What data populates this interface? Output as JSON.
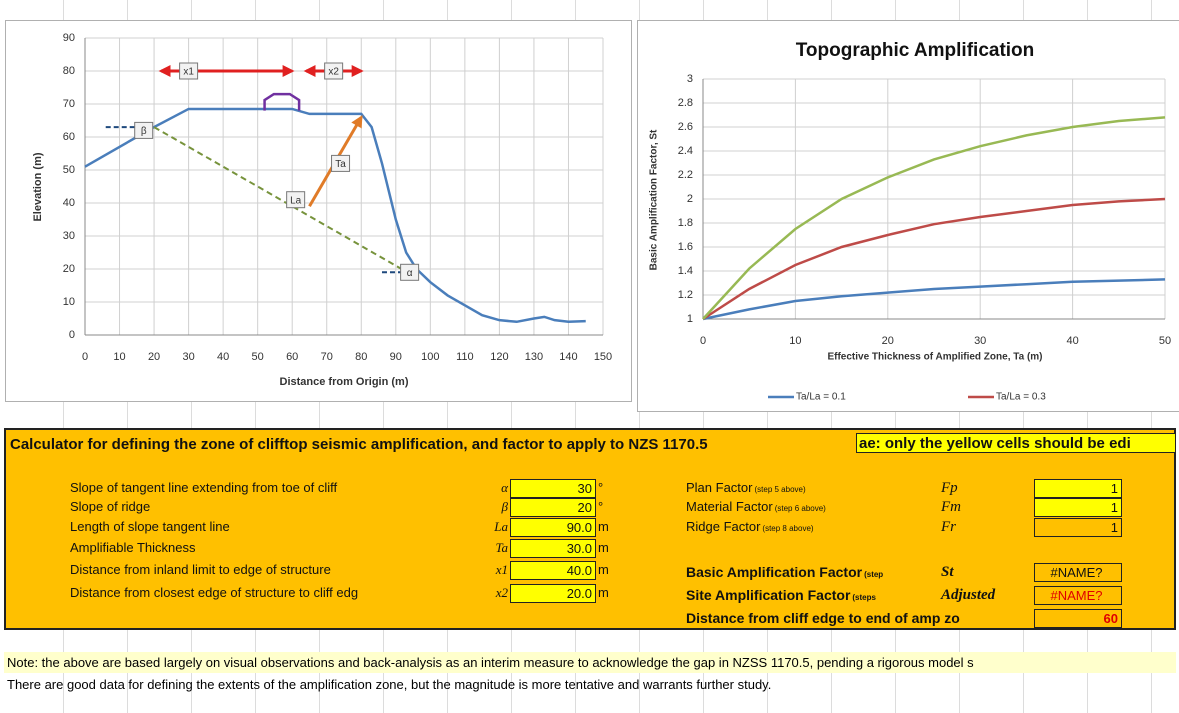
{
  "profile_chart": {
    "type": "line",
    "x_label": "Distance from Origin (m)",
    "y_label": "Elevation (m)",
    "x": [
      0,
      15,
      20,
      30,
      60,
      65,
      80,
      83,
      86,
      90,
      93,
      96,
      100,
      105,
      110,
      115,
      120,
      125,
      130,
      133,
      136,
      140,
      145
    ],
    "values": [
      51,
      60,
      63,
      68.5,
      68.5,
      67,
      67,
      63,
      52,
      35,
      25,
      20,
      16,
      12,
      9,
      6,
      4.5,
      4,
      5,
      5.5,
      4.5,
      4,
      4.2
    ],
    "color": "#4a7ebb",
    "xlim": [
      0,
      150
    ],
    "ylim": [
      0,
      90
    ],
    "xticks": [
      0,
      10,
      20,
      30,
      40,
      50,
      60,
      70,
      80,
      90,
      100,
      110,
      120,
      130,
      140,
      150
    ],
    "yticks": [
      0,
      10,
      20,
      30,
      40,
      50,
      60,
      70,
      80,
      90
    ],
    "grid": true,
    "annotations": [
      "x1",
      "x2",
      "Ta",
      "La",
      "β",
      "α"
    ]
  },
  "amp_chart": {
    "type": "line",
    "title": "Topographic Amplification",
    "x_label": "Effective Thickness of Amplified Zone, Ta (m)",
    "y_label": "Basic Amplification Factor, St",
    "x": [
      0,
      5,
      10,
      15,
      20,
      25,
      30,
      35,
      40,
      45,
      50
    ],
    "series": [
      {
        "name": "Ta/La = 0.1",
        "color": "#4a7ebb",
        "values": [
          1,
          1.08,
          1.15,
          1.19,
          1.22,
          1.25,
          1.27,
          1.29,
          1.31,
          1.32,
          1.33
        ]
      },
      {
        "name": "Ta/La = 0.3",
        "color": "#be4b48",
        "values": [
          1,
          1.25,
          1.45,
          1.6,
          1.7,
          1.79,
          1.85,
          1.9,
          1.95,
          1.98,
          2.0
        ]
      },
      {
        "color": "#98b954",
        "values": [
          1,
          1.42,
          1.75,
          2.0,
          2.18,
          2.33,
          2.44,
          2.53,
          2.6,
          2.65,
          2.68
        ]
      }
    ],
    "xlim": [
      0,
      50
    ],
    "ylim": [
      1,
      3
    ],
    "xticks": [
      0,
      10,
      20,
      30,
      40,
      50
    ],
    "yticks": [
      1,
      1.2,
      1.4,
      1.6,
      1.8,
      2,
      2.2,
      2.4,
      2.6,
      2.8,
      3
    ],
    "grid": true,
    "legend": "bottom"
  },
  "calculator": {
    "title": "Calculator for defining the zone of clifftop seismic amplification, and factor to apply to NZS 1170.5",
    "instruction": "ae: only the yellow cells should be edi",
    "left_rows": [
      {
        "label": "Slope of tangent line extending from toe of cliff",
        "symbol": "α",
        "value": "30",
        "unit": "°"
      },
      {
        "label": "Slope of ridge",
        "symbol": "β",
        "value": "20",
        "unit": "°"
      },
      {
        "label": "Length of slope tangent line",
        "symbol": "La",
        "value": "90.0",
        "unit": "m"
      },
      {
        "label": "Amplifiable Thickness",
        "symbol": "Ta",
        "value": "30.0",
        "unit": "m"
      },
      {
        "label": "Distance from inland limit to edge of structure",
        "symbol": "x1",
        "value": "40.0",
        "unit": "m"
      },
      {
        "label": "Distance from closest edge of structure to cliff edg",
        "symbol": "x2",
        "value": "20.0",
        "unit": "m"
      }
    ],
    "right_rows": [
      {
        "label": "Plan Factor",
        "note": "(step 5 above)",
        "symbol": "Fp",
        "value": "1"
      },
      {
        "label": "Material Factor",
        "note": "(step 6 above)",
        "symbol": "Fm",
        "value": "1"
      },
      {
        "label": "Ridge Factor",
        "note": "(step 8 above)",
        "symbol": "Fr",
        "value": "1"
      },
      {
        "label": "Basic Amplification Factor",
        "note": "(step",
        "symbol": "St",
        "value": "#NAME?"
      },
      {
        "label": "Site Amplification Factor",
        "note": "(steps",
        "symbol": "Adjusted",
        "value": "#NAME?"
      },
      {
        "label": "Distance from cliff edge to end of amp zo",
        "value": "60"
      }
    ]
  },
  "notes": [
    "Note: the above are based largely on visual observations and back-analysis as an interim measure to acknowledge the gap in NZSS 1170.5, pending a rigorous model s",
    "There are good data for defining the extents of the amplification zone, but the magnitude is more tentative and warrants further study."
  ]
}
